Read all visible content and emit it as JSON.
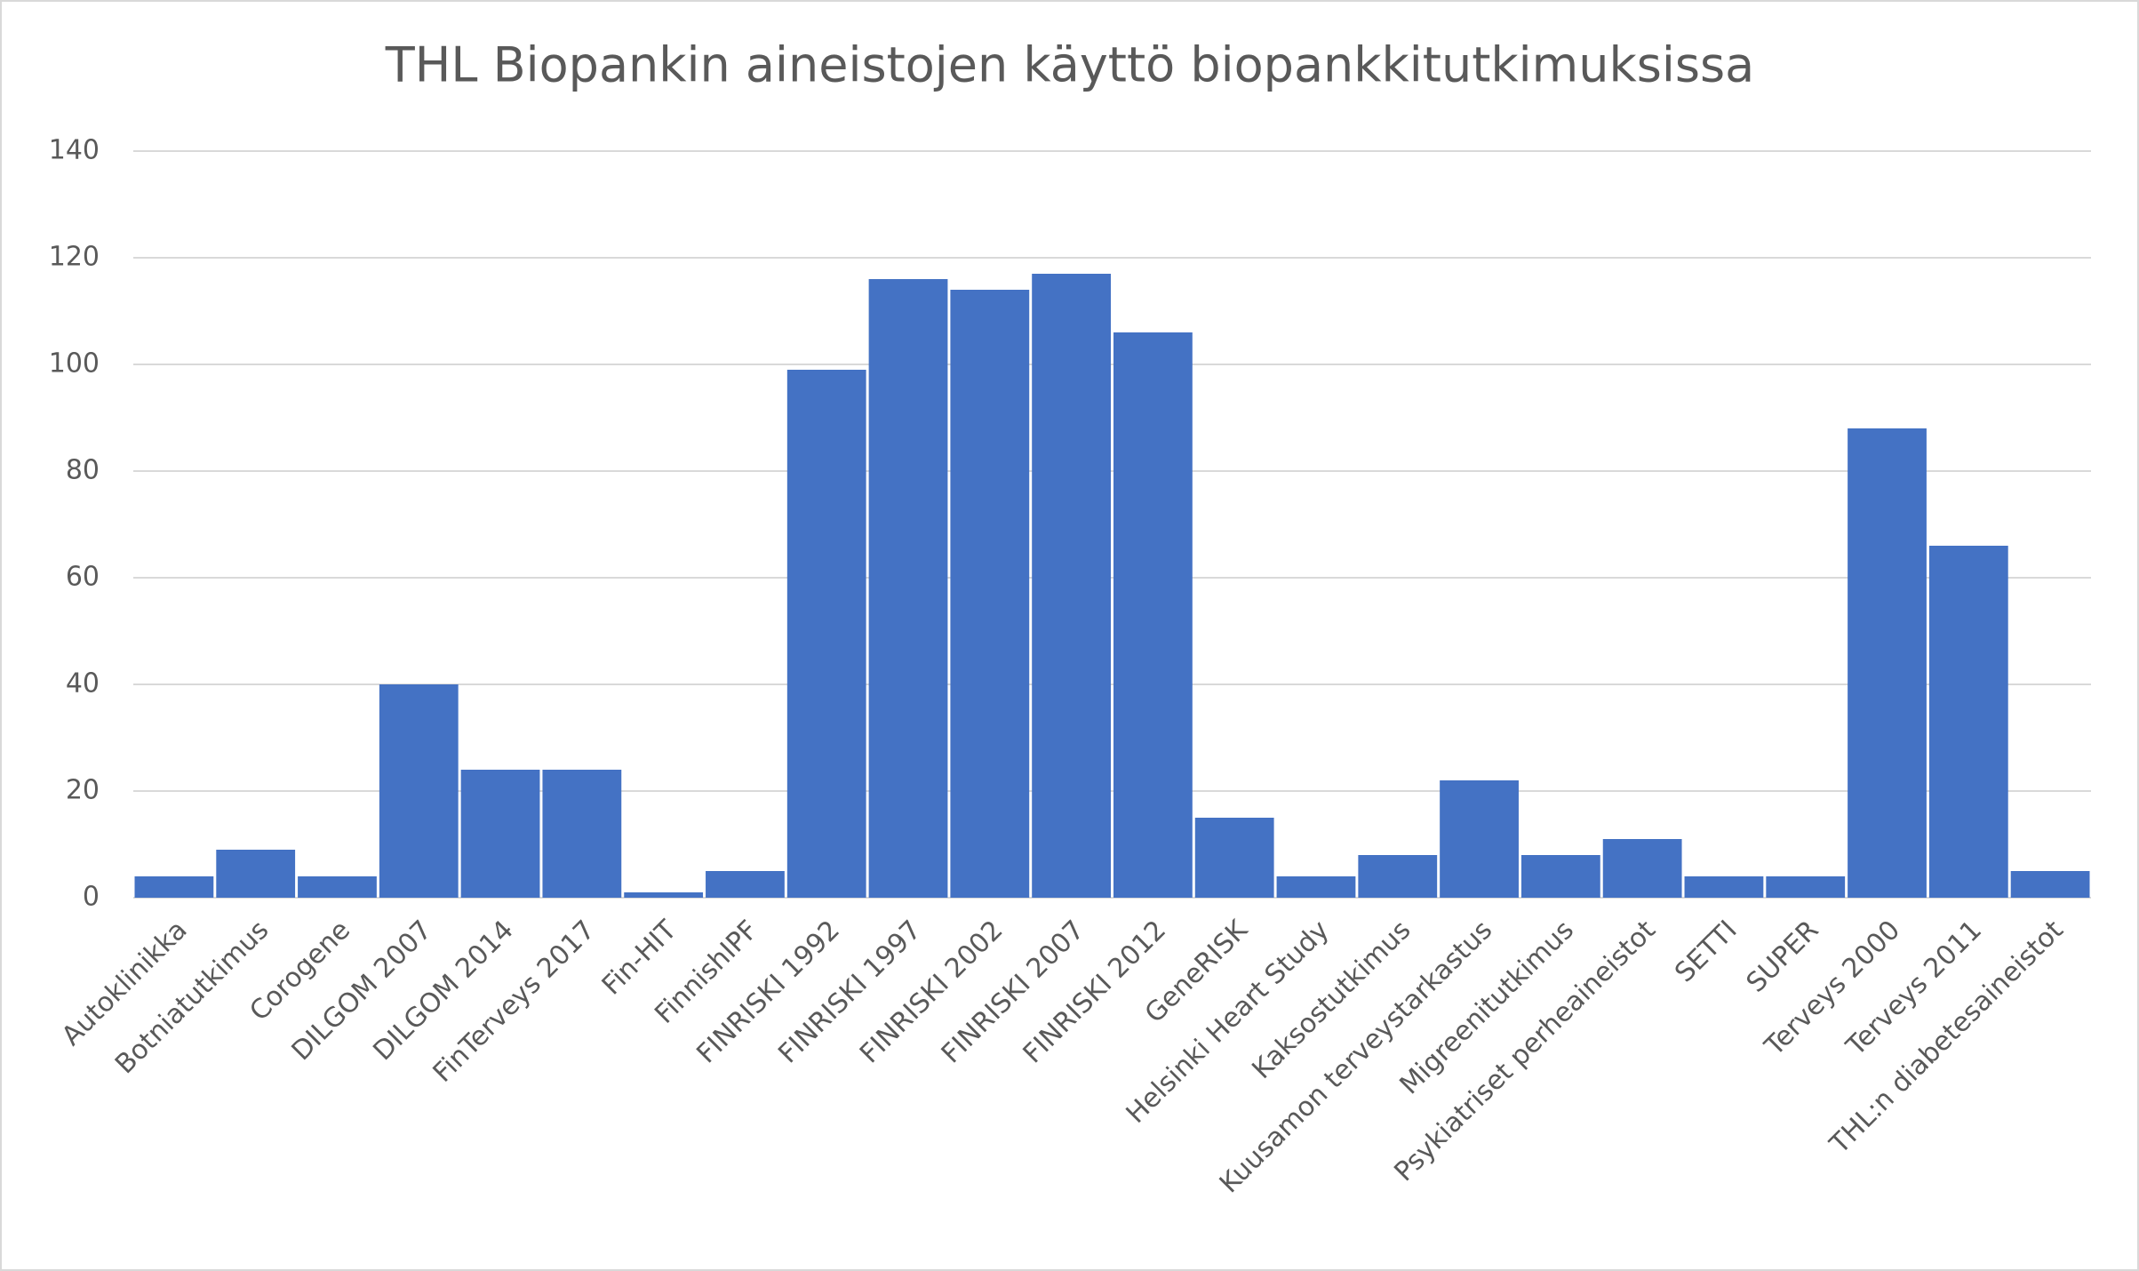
{
  "chart_data": {
    "type": "bar",
    "title": "THL Biopankin aineistojen käyttö biopankkitutkimuksissa",
    "categories": [
      "Autoklinikka",
      "Botniatutkimus",
      "Corogene",
      "DILGOM 2007",
      "DILGOM 2014",
      "FinTerveys 2017",
      "Fin-HIT",
      "FinnishIPF",
      "FINRISKI 1992",
      "FINRISKI 1997",
      "FINRISKI 2002",
      "FINRISKI 2007",
      "FINRISKI 2012",
      "GeneRISK",
      "Helsinki Heart Study",
      "Kaksostutkimus",
      "Kuusamon terveystarkastus",
      "Migreenitutkimus",
      "Psykiatriset perheaineistot",
      "SETTI",
      "SUPER",
      "Terveys 2000",
      "Terveys 2011",
      "THL:n diabetesaineistot"
    ],
    "values": [
      4,
      9,
      4,
      40,
      24,
      24,
      1,
      5,
      99,
      116,
      114,
      117,
      106,
      15,
      4,
      8,
      22,
      8,
      11,
      4,
      4,
      88,
      66,
      5
    ],
    "color": "#4472c4",
    "ylim": [
      0,
      140
    ],
    "yticks": [
      0,
      20,
      40,
      60,
      80,
      100,
      120,
      140
    ],
    "grid": true
  }
}
